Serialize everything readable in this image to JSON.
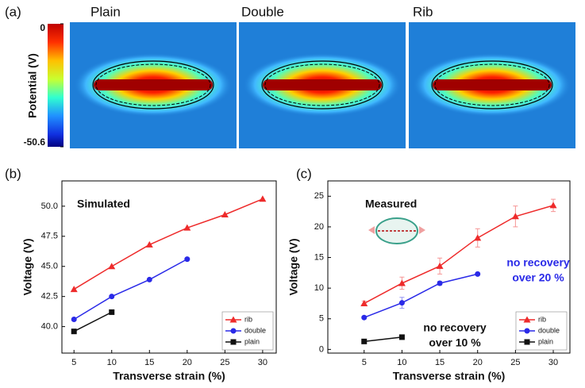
{
  "panel_a": {
    "label": "(a)",
    "panels": [
      "Plain",
      "Double",
      "Rib"
    ],
    "colorbar": {
      "title": "Potential (V)",
      "clim": [
        -50.6,
        0
      ],
      "ticks": [
        0,
        -50.6
      ]
    }
  },
  "chart_data": [
    {
      "type": "line",
      "label": "(b)",
      "xlabel": "Transverse strain (%)",
      "ylabel": "Voltage (V)",
      "xlim": [
        3.4,
        31.8
      ],
      "xticks": [
        5,
        10,
        15,
        20,
        25,
        30
      ],
      "ylim": [
        37.8,
        52.1
      ],
      "yticks": [
        {
          "value": 40,
          "label": "40.0"
        },
        {
          "value": 42.5,
          "label": "42.5"
        },
        {
          "value": 45,
          "label": "45.0"
        },
        {
          "value": 47.5,
          "label": "47.5"
        },
        {
          "value": 50,
          "label": "50.0"
        }
      ],
      "legend": "lower right",
      "annotations": [
        {
          "lines": [
            "Simulated"
          ],
          "color": "#111111"
        }
      ],
      "series": [
        {
          "name": "rib",
          "color": "#ee2b2b",
          "marker": "triangle",
          "x": [
            5,
            10,
            15,
            20,
            25,
            30
          ],
          "values": [
            43.1,
            45.0,
            46.8,
            48.2,
            49.3,
            50.6
          ]
        },
        {
          "name": "double",
          "color": "#2a2ae8",
          "marker": "circle",
          "x": [
            5,
            10,
            15,
            20
          ],
          "values": [
            40.6,
            42.5,
            43.9,
            45.6
          ]
        },
        {
          "name": "plain",
          "color": "#111111",
          "marker": "square",
          "x": [
            5,
            10
          ],
          "values": [
            39.6,
            41.2
          ]
        }
      ]
    },
    {
      "type": "line",
      "label": "(c)",
      "xlabel": "Transverse strain (%)",
      "ylabel": "Voltage (V)",
      "xlim": [
        0.2,
        32.2
      ],
      "xticks": [
        5,
        10,
        15,
        20,
        25,
        30
      ],
      "ylim": [
        -0.6,
        27.5
      ],
      "yticks": [
        0,
        5,
        10,
        15,
        20,
        25
      ],
      "legend": "lower right",
      "annotations": [
        {
          "lines": [
            "Measured"
          ],
          "color": "#111111"
        },
        {
          "lines": [
            "no recovery",
            "over 20 %"
          ],
          "color": "#2a2ae8"
        },
        {
          "lines": [
            "no recovery",
            "over 10 %"
          ],
          "color": "#111111"
        }
      ],
      "series": [
        {
          "name": "rib",
          "color": "#ee2b2b",
          "marker": "triangle",
          "x": [
            5,
            10,
            15,
            20,
            25,
            30
          ],
          "values": [
            7.5,
            10.8,
            13.6,
            18.2,
            21.7,
            23.5
          ],
          "errors": [
            0.4,
            1.0,
            1.3,
            1.5,
            1.7,
            1.0
          ]
        },
        {
          "name": "double",
          "color": "#2a2ae8",
          "marker": "circle",
          "x": [
            5,
            10,
            15,
            20
          ],
          "values": [
            5.2,
            7.6,
            10.8,
            12.3
          ],
          "errors": [
            0.2,
            0.9,
            0.3,
            0.2
          ]
        },
        {
          "name": "plain",
          "color": "#111111",
          "marker": "square",
          "x": [
            5,
            10
          ],
          "values": [
            1.3,
            2.0
          ],
          "errors": [
            0.1,
            0.1
          ]
        }
      ]
    }
  ]
}
